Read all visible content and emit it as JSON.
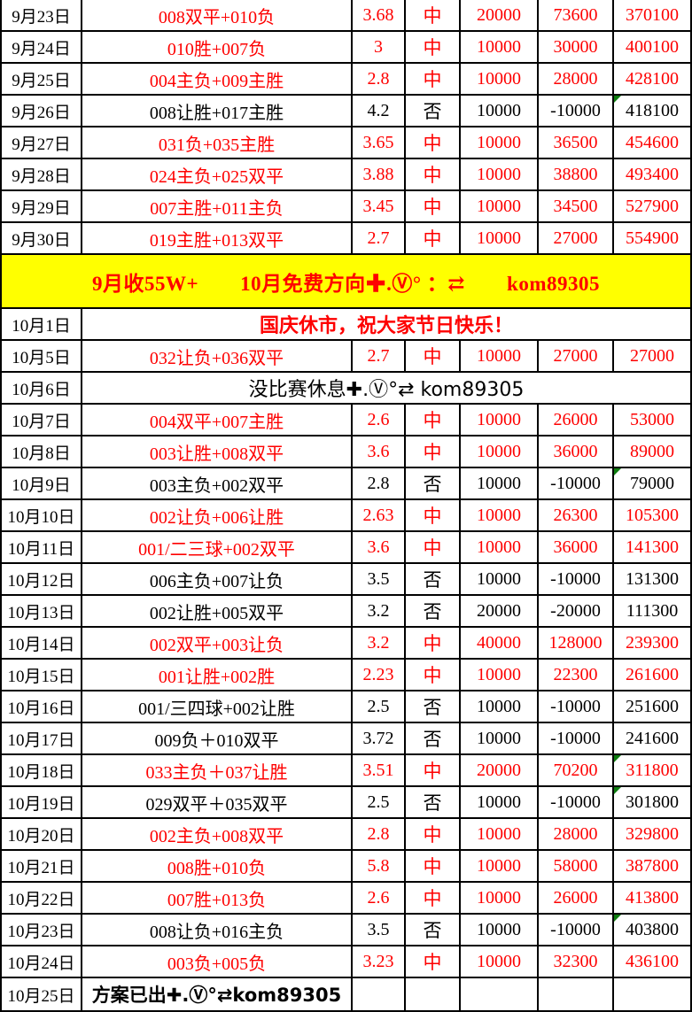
{
  "colors": {
    "win_red": "#fe0000",
    "loss_black": "#000000",
    "banner_yellow": "#ffff00",
    "flag_green": "#0e7d10",
    "border_black": "#000000"
  },
  "icons": {
    "flag_icon": "green-corner-triangle",
    "plus_icon": "✚",
    "circled_v_icon": "Ⓥ°",
    "swap_arrow_icon": "⇄"
  },
  "contact_code": "kom89305",
  "rows": [
    {
      "type": "bet",
      "date": "9月23日",
      "pick": "008双平+010负",
      "odds": "3.68",
      "result": "中",
      "stake": "20000",
      "profit": "73600",
      "total": "370100",
      "win": true,
      "flag": false
    },
    {
      "type": "bet",
      "date": "9月24日",
      "pick": "010胜+007负",
      "odds": "3",
      "result": "中",
      "stake": "10000",
      "profit": "30000",
      "total": "400100",
      "win": true,
      "flag": false
    },
    {
      "type": "bet",
      "date": "9月25日",
      "pick": "004主负+009主胜",
      "odds": "2.8",
      "result": "中",
      "stake": "10000",
      "profit": "28000",
      "total": "428100",
      "win": true,
      "flag": false
    },
    {
      "type": "bet",
      "date": "9月26日",
      "pick": "008让胜+017主胜",
      "odds": "4.2",
      "result": "否",
      "stake": "10000",
      "profit": "-10000",
      "total": "418100",
      "win": false,
      "flag": true
    },
    {
      "type": "bet",
      "date": "9月27日",
      "pick": "031负+035主胜",
      "odds": "3.65",
      "result": "中",
      "stake": "10000",
      "profit": "36500",
      "total": "454600",
      "win": true,
      "flag": false
    },
    {
      "type": "bet",
      "date": "9月28日",
      "pick": "024主负+025双平",
      "odds": "3.88",
      "result": "中",
      "stake": "10000",
      "profit": "38800",
      "total": "493400",
      "win": true,
      "flag": false
    },
    {
      "type": "bet",
      "date": "9月29日",
      "pick": "007主胜+011主负",
      "odds": "3.45",
      "result": "中",
      "stake": "10000",
      "profit": "34500",
      "total": "527900",
      "win": true,
      "flag": false
    },
    {
      "type": "bet",
      "date": "9月30日",
      "pick": "019主胜+013双平",
      "odds": "2.7",
      "result": "中",
      "stake": "10000",
      "profit": "27000",
      "total": "554900",
      "win": true,
      "flag": false
    },
    {
      "type": "banner",
      "text": "9月收55W+　　10月免费方向✚.Ⓥ° ：⇄　　kom89305"
    },
    {
      "type": "notice",
      "date": "10月1日",
      "text": "国庆休市，祝大家节日快乐！",
      "color": "red"
    },
    {
      "type": "bet",
      "date": "10月5日",
      "pick": "032让负+036双平",
      "odds": "2.7",
      "result": "中",
      "stake": "10000",
      "profit": "27000",
      "total": "27000",
      "win": true,
      "flag": false
    },
    {
      "type": "notice",
      "date": "10月6日",
      "text": "没比赛休息✚.Ⓥ°⇄ kom89305",
      "color": "black"
    },
    {
      "type": "bet",
      "date": "10月7日",
      "pick": "004双平+007主胜",
      "odds": "2.6",
      "result": "中",
      "stake": "10000",
      "profit": "26000",
      "total": "53000",
      "win": true,
      "flag": false
    },
    {
      "type": "bet",
      "date": "10月8日",
      "pick": "003让胜+008双平",
      "odds": "3.6",
      "result": "中",
      "stake": "10000",
      "profit": "36000",
      "total": "89000",
      "win": true,
      "flag": false
    },
    {
      "type": "bet",
      "date": "10月9日",
      "pick": "003主负+002双平",
      "odds": "2.8",
      "result": "否",
      "stake": "10000",
      "profit": "-10000",
      "total": "79000",
      "win": false,
      "flag": true
    },
    {
      "type": "bet",
      "date": "10月10日",
      "pick": "002让负+006让胜",
      "odds": "2.63",
      "result": "中",
      "stake": "10000",
      "profit": "26300",
      "total": "105300",
      "win": true,
      "flag": false
    },
    {
      "type": "bet",
      "date": "10月11日",
      "pick": "001/二三球+002双平",
      "odds": "3.6",
      "result": "中",
      "stake": "10000",
      "profit": "36000",
      "total": "141300",
      "win": true,
      "flag": false
    },
    {
      "type": "bet",
      "date": "10月12日",
      "pick": "006主负+007让负",
      "odds": "3.5",
      "result": "否",
      "stake": "10000",
      "profit": "-10000",
      "total": "131300",
      "win": false,
      "flag": false
    },
    {
      "type": "bet",
      "date": "10月13日",
      "pick": "002让胜+005双平",
      "odds": "3.2",
      "result": "否",
      "stake": "20000",
      "profit": "-20000",
      "total": "111300",
      "win": false,
      "flag": false
    },
    {
      "type": "bet",
      "date": "10月14日",
      "pick": "002双平+003让负",
      "odds": "3.2",
      "result": "中",
      "stake": "40000",
      "profit": "128000",
      "total": "239300",
      "win": true,
      "flag": false
    },
    {
      "type": "bet",
      "date": "10月15日",
      "pick": "001让胜+002胜",
      "odds": "2.23",
      "result": "中",
      "stake": "10000",
      "profit": "22300",
      "total": "261600",
      "win": true,
      "flag": false
    },
    {
      "type": "bet",
      "date": "10月16日",
      "pick": "001/三四球+002让胜",
      "odds": "2.5",
      "result": "否",
      "stake": "10000",
      "profit": "-10000",
      "total": "251600",
      "win": false,
      "flag": false
    },
    {
      "type": "bet",
      "date": "10月17日",
      "pick": "009负＋010双平",
      "odds": "3.72",
      "result": "否",
      "stake": "10000",
      "profit": "-10000",
      "total": "241600",
      "win": false,
      "flag": false
    },
    {
      "type": "bet",
      "date": "10月18日",
      "pick": "033主负＋037让胜",
      "odds": "3.51",
      "result": "中",
      "stake": "20000",
      "profit": "70200",
      "total": "311800",
      "win": true,
      "flag": true
    },
    {
      "type": "bet",
      "date": "10月19日",
      "pick": "029双平＋035双平",
      "odds": "2.5",
      "result": "否",
      "stake": "10000",
      "profit": "-10000",
      "total": "301800",
      "win": false,
      "flag": true
    },
    {
      "type": "bet",
      "date": "10月20日",
      "pick": "002主负+008双平",
      "odds": "2.8",
      "result": "中",
      "stake": "10000",
      "profit": "28000",
      "total": "329800",
      "win": true,
      "flag": false
    },
    {
      "type": "bet",
      "date": "10月21日",
      "pick": "008胜+010负",
      "odds": "5.8",
      "result": "中",
      "stake": "10000",
      "profit": "58000",
      "total": "387800",
      "win": true,
      "flag": false
    },
    {
      "type": "bet",
      "date": "10月22日",
      "pick": "007胜+013负",
      "odds": "2.6",
      "result": "中",
      "stake": "10000",
      "profit": "26000",
      "total": "413800",
      "win": true,
      "flag": false
    },
    {
      "type": "bet",
      "date": "10月23日",
      "pick": "008让负+016主负",
      "odds": "3.5",
      "result": "否",
      "stake": "10000",
      "profit": "-10000",
      "total": "403800",
      "win": false,
      "flag": true
    },
    {
      "type": "bet",
      "date": "10月24日",
      "pick": "003负+005负",
      "odds": "3.23",
      "result": "中",
      "stake": "10000",
      "profit": "32300",
      "total": "436100",
      "win": true,
      "flag": false
    },
    {
      "type": "pending",
      "date": "10月25日",
      "text": "方案已出✚.Ⓥ°⇄kom89305"
    }
  ]
}
